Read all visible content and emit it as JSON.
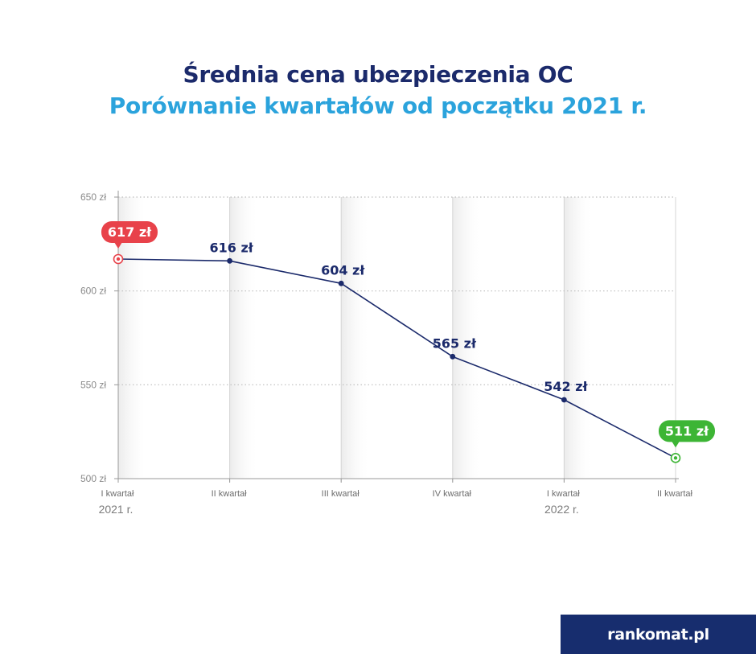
{
  "header": {
    "title": "Średnia cena ubezpieczenia OC",
    "subtitle": "Porównanie kwartałów od początku 2021 r."
  },
  "chart_data": {
    "type": "line",
    "title": "Średnia cena ubezpieczenia OC",
    "subtitle": "Porównanie kwartałów od początku 2021 r.",
    "categories": [
      "I kwartał",
      "II kwartał",
      "III kwartał",
      "IV kwartał",
      "I kwartał",
      "II kwartał"
    ],
    "years": [
      "2021 r.",
      "",
      "",
      "",
      "2022 r.",
      ""
    ],
    "series": [
      {
        "values": [
          617,
          616,
          604,
          565,
          542,
          511
        ],
        "labels": [
          "617 zł",
          "616 zł",
          "604 zł",
          "565 zł",
          "542 zł",
          "511 zł"
        ]
      }
    ],
    "y_ticks": [
      {
        "value": 650,
        "label": "650 zł"
      },
      {
        "value": 600,
        "label": "600 zł"
      },
      {
        "value": 550,
        "label": "550 zł"
      },
      {
        "value": 500,
        "label": "500 zł"
      }
    ],
    "ylim": [
      500,
      650
    ],
    "grid": true,
    "colors": {
      "line": "#1b2a6b",
      "max_badge": "#e8424a",
      "min_badge": "#3db535",
      "grid": "#c8c8c8"
    }
  },
  "footer": {
    "logo_text": "rankomat.pl"
  }
}
